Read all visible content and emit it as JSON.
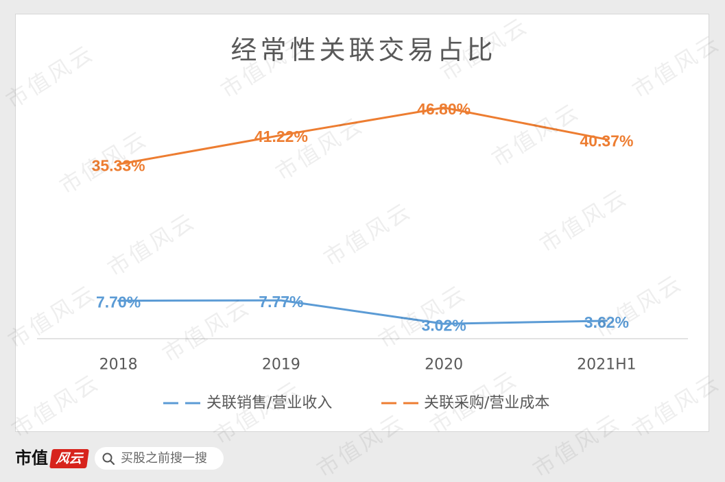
{
  "chart_data": {
    "type": "line",
    "title": "经常性关联交易占比",
    "categories": [
      "2018",
      "2019",
      "2020",
      "2021H1"
    ],
    "series": [
      {
        "name": "关联销售/营业收入",
        "values": [
          7.7,
          7.77,
          3.02,
          3.62
        ],
        "labels": [
          "7.70%",
          "7.77%",
          "3.02%",
          "3.62%"
        ],
        "color": "#5B9BD5"
      },
      {
        "name": "关联采购/营业成本",
        "values": [
          35.33,
          41.22,
          46.8,
          40.37
        ],
        "labels": [
          "35.33%",
          "41.22%",
          "46.80%",
          "40.37%"
        ],
        "color": "#ED7D31"
      }
    ],
    "xlabel": "",
    "ylabel": "",
    "ylim": [
      0,
      50
    ],
    "grid": false,
    "legend": "bottom"
  },
  "footer": {
    "logo_left": "市值",
    "logo_right": "风云",
    "search_icon": "search-icon",
    "search_placeholder": "买股之前搜一搜"
  },
  "watermark": "市值风云",
  "colors": {
    "background": "#EBEBEB",
    "card": "#FFFFFF",
    "text": "#595959",
    "axis": "#D9D9D9",
    "brand_red": "#D7231C"
  }
}
